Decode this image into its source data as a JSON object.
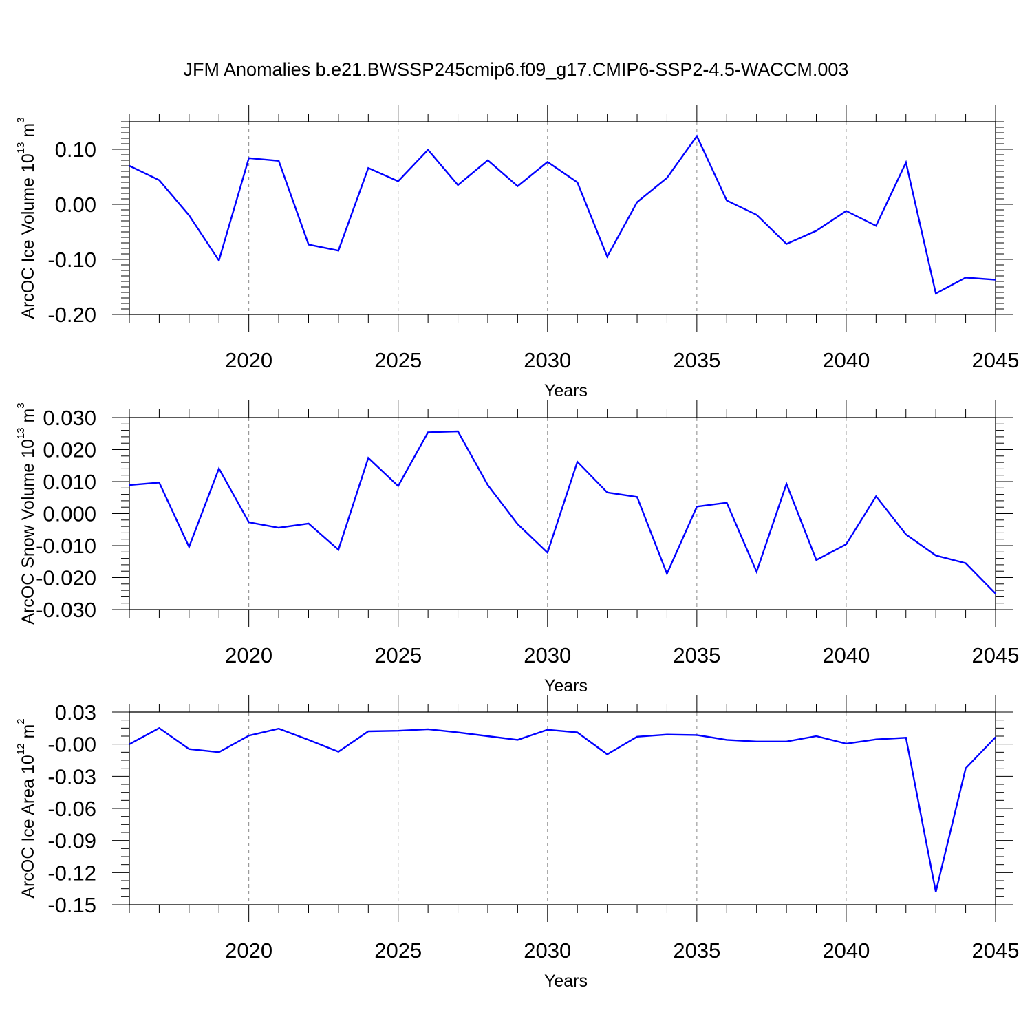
{
  "title": "JFM Anomalies b.e21.BWSSP245cmip6.f09_g17.CMIP6-SSP2-4.5-WACCM.003",
  "chart_data": [
    {
      "type": "line",
      "ylabel_main": "ArcOC Ice Volume 10",
      "ylabel_exp": "13",
      "ylabel_unit": " m",
      "ylabel_unit_exp": "3",
      "xlabel": "Years",
      "xlim": [
        2016,
        2045
      ],
      "ylim": [
        -0.2,
        0.15
      ],
      "xticks": [
        "2020",
        "2025",
        "2030",
        "2035",
        "2040",
        "2045"
      ],
      "yticks": [
        "0.10",
        "0.00",
        "-0.10",
        "-0.20"
      ],
      "ytick_values": [
        0.1,
        0.0,
        -0.1,
        -0.2
      ],
      "line_color": "#0000ff",
      "x": [
        2016,
        2017,
        2018,
        2019,
        2020,
        2021,
        2022,
        2023,
        2024,
        2025,
        2026,
        2027,
        2028,
        2029,
        2030,
        2031,
        2032,
        2033,
        2034,
        2035,
        2036,
        2037,
        2038,
        2039,
        2040,
        2041,
        2042,
        2043,
        2044,
        2045
      ],
      "values": [
        0.07,
        0.044,
        -0.02,
        -0.102,
        0.084,
        0.079,
        -0.073,
        -0.084,
        0.066,
        0.042,
        0.099,
        0.035,
        0.08,
        0.033,
        0.077,
        0.04,
        -0.095,
        0.004,
        0.048,
        0.124,
        0.007,
        -0.019,
        -0.072,
        -0.048,
        -0.012,
        -0.039,
        0.076,
        -0.162,
        -0.133,
        -0.137
      ]
    },
    {
      "type": "line",
      "ylabel_main": "ArcOC Snow Volume 10",
      "ylabel_exp": "13",
      "ylabel_unit": " m",
      "ylabel_unit_exp": "3",
      "xlabel": "Years",
      "xlim": [
        2016,
        2045
      ],
      "ylim": [
        -0.03,
        0.03
      ],
      "xticks": [
        "2020",
        "2025",
        "2030",
        "2035",
        "2040",
        "2045"
      ],
      "yticks": [
        "0.030",
        "0.020",
        "0.010",
        "0.000",
        "-0.010",
        "-0.020",
        "-0.030"
      ],
      "ytick_values": [
        0.03,
        0.02,
        0.01,
        0.0,
        -0.01,
        -0.02,
        -0.03
      ],
      "line_color": "#0000ff",
      "x": [
        2016,
        2017,
        2018,
        2019,
        2020,
        2021,
        2022,
        2023,
        2024,
        2025,
        2026,
        2027,
        2028,
        2029,
        2030,
        2031,
        2032,
        2033,
        2034,
        2035,
        2036,
        2037,
        2038,
        2039,
        2040,
        2041,
        2042,
        2043,
        2044,
        2045
      ],
      "values": [
        0.0089,
        0.0097,
        -0.0104,
        0.0141,
        -0.0027,
        -0.0044,
        -0.0031,
        -0.0113,
        0.0174,
        0.0086,
        0.0254,
        0.0257,
        0.0089,
        -0.0033,
        -0.0122,
        0.0162,
        0.0066,
        0.0052,
        -0.0188,
        0.0022,
        0.0034,
        -0.0182,
        0.0093,
        -0.0145,
        -0.0096,
        0.0054,
        -0.0065,
        -0.0131,
        -0.0155,
        -0.025
      ]
    },
    {
      "type": "line",
      "ylabel_main": "ArcOC Ice Area 10",
      "ylabel_exp": "12",
      "ylabel_unit": " m",
      "ylabel_unit_exp": "2",
      "xlabel": "Years",
      "xlim": [
        2016,
        2045
      ],
      "ylim": [
        -0.15,
        0.03
      ],
      "xticks": [
        "2020",
        "2025",
        "2030",
        "2035",
        "2040",
        "2045"
      ],
      "yticks": [
        "0.03",
        "-0.00",
        "-0.03",
        "-0.06",
        "-0.09",
        "-0.12",
        "-0.15"
      ],
      "ytick_values": [
        0.03,
        0.0,
        -0.03,
        -0.06,
        -0.09,
        -0.12,
        -0.15
      ],
      "line_color": "#0000ff",
      "x": [
        2016,
        2017,
        2018,
        2019,
        2020,
        2021,
        2022,
        2023,
        2024,
        2025,
        2026,
        2027,
        2028,
        2029,
        2030,
        2031,
        2032,
        2033,
        2034,
        2035,
        2036,
        2037,
        2038,
        2039,
        2040,
        2041,
        2042,
        2043,
        2044,
        2045
      ],
      "values": [
        0.0,
        0.015,
        -0.0045,
        -0.0075,
        0.008,
        0.0145,
        0.004,
        -0.007,
        0.012,
        0.0125,
        0.014,
        0.011,
        0.0075,
        0.004,
        0.0135,
        0.011,
        -0.0095,
        0.007,
        0.009,
        0.0085,
        0.004,
        0.0025,
        0.0025,
        0.0075,
        0.0005,
        0.0045,
        0.006,
        -0.138,
        -0.0225,
        0.0065
      ]
    }
  ]
}
